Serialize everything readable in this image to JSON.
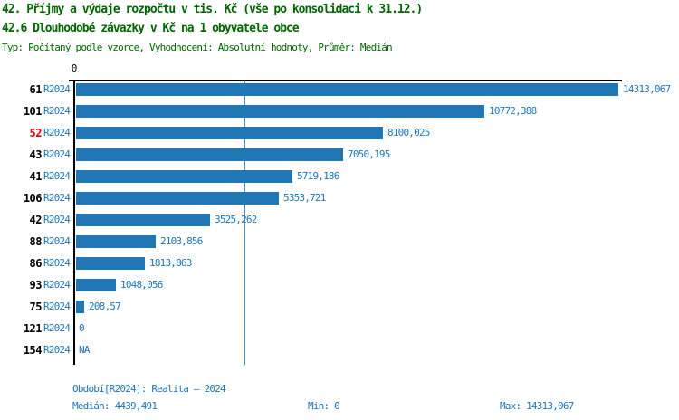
{
  "title": {
    "line1": "42. Příjmy a výdaje rozpočtu v tis. Kč (vše po konsolidaci k 31.12.)",
    "line2": "42.6 Dlouhodobé závazky v Kč na 1 obyvatele obce",
    "meta": "Typ: Počítaný podle vzorce, Vyhodnocení: Absolutní hodnoty, Průměr: Medián"
  },
  "axis": {
    "zero_label": "0"
  },
  "chart_data": {
    "type": "bar",
    "orientation": "horizontal",
    "title": "42.6 Dlouhodobé závazky v Kč na 1 obyvatele obce",
    "categories": [
      "61",
      "101",
      "52",
      "43",
      "41",
      "106",
      "42",
      "88",
      "86",
      "93",
      "75",
      "121",
      "154"
    ],
    "series_label": "R2024",
    "values": [
      14313.067,
      10772.388,
      8100.025,
      7050.195,
      5719.186,
      5353.721,
      3525.262,
      2103.856,
      1813.863,
      1048.056,
      208.57,
      0,
      null
    ],
    "value_labels": [
      "14313,067",
      "10772,388",
      "8100,025",
      "7050,195",
      "5719,186",
      "5353,721",
      "3525,262",
      "2103,856",
      "1813,863",
      "1048,056",
      "208,57",
      "0",
      "NA"
    ],
    "highlighted_category": "52",
    "xlim": [
      0,
      14313.067
    ],
    "median": 4439.491,
    "grid": "median-line-only",
    "legend": "none",
    "colors": {
      "bar": "#2077b4",
      "value_text": "#2077b4",
      "series_text": "#2077b4",
      "category_text": "#000000",
      "highlighted_category_text": "#e00000",
      "median_line": "#4090c0",
      "axis": "#000000",
      "title_text": "#006600",
      "footer_text": "#2077b4"
    }
  },
  "footer": {
    "period": "Období[R2024]: Realita – 2024",
    "median": "Medián: 4439,491",
    "min": "Min: 0",
    "max": "Max: 14313,067"
  }
}
